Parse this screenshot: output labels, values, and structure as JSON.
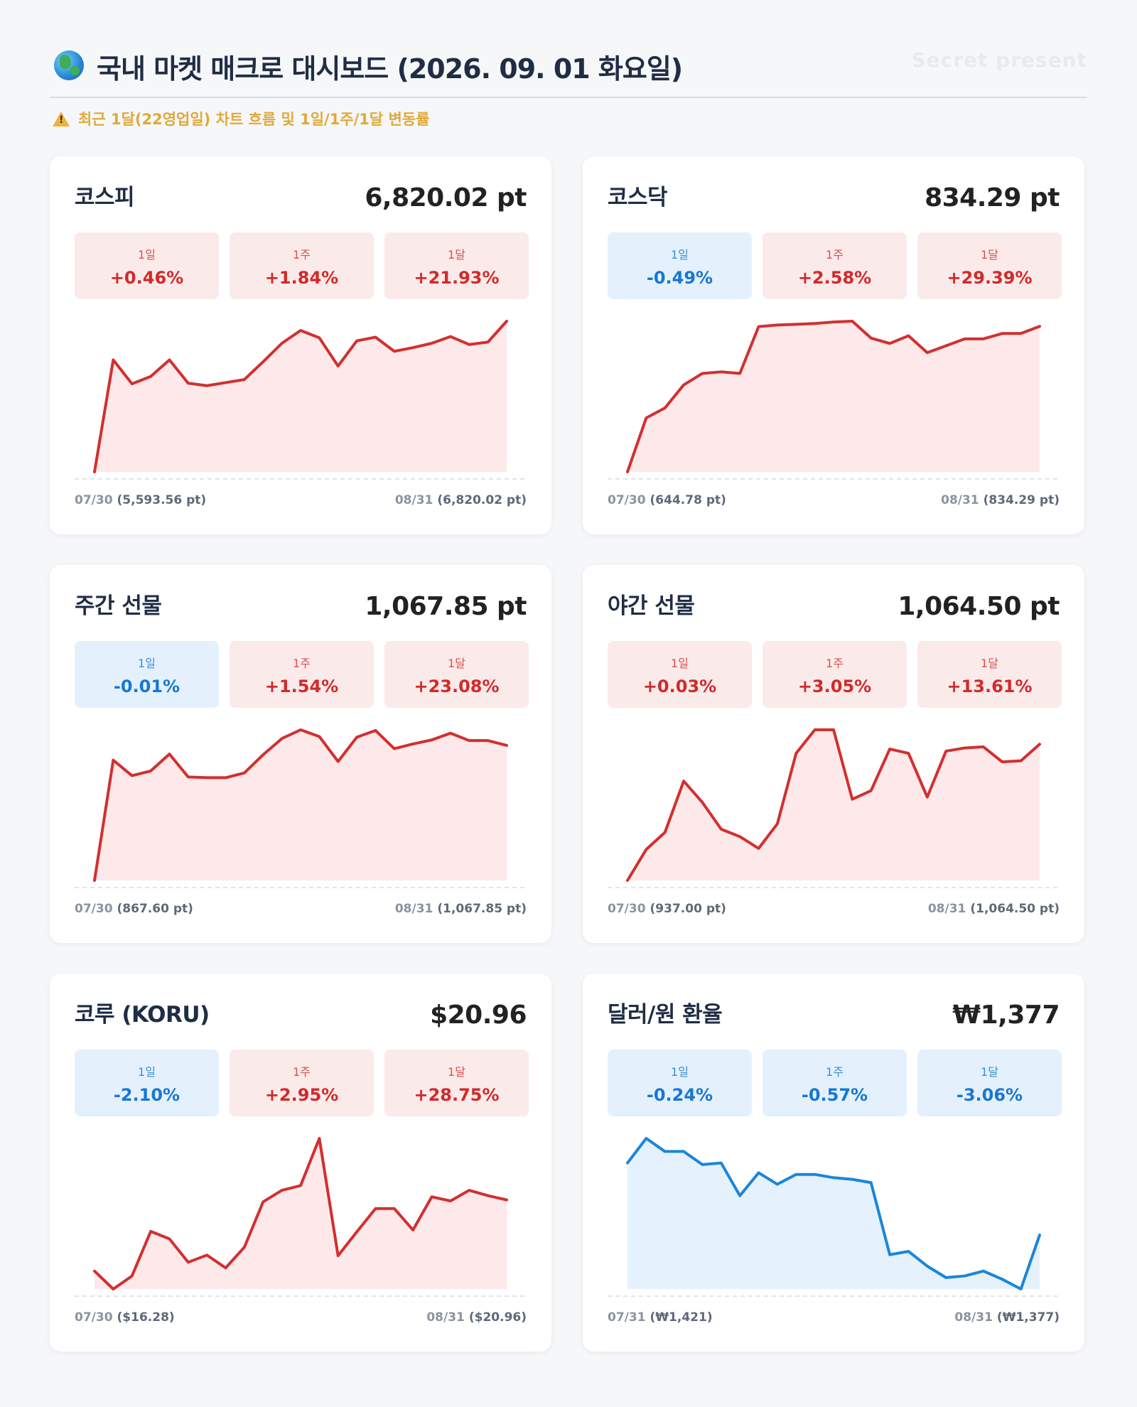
{
  "header": {
    "title": "국내 마켓 매크로 대시보드 (2026. 09. 01 화요일)",
    "watermark": "Secret present",
    "globe_icon": "globe-icon"
  },
  "subtitle": "최근 1달(22영업일) 차트 흐름 및 1일/1주/1달 변동률",
  "colors": {
    "up_line": "#d32f2f",
    "up_fill": "#fde9e9",
    "down_line": "#1a86d9",
    "down_fill": "#e5f1fc"
  },
  "cards": [
    {
      "name": "코스피",
      "value": "6,820.02 pt",
      "changes": [
        {
          "label": "1일",
          "value": "+0.46%",
          "dir": "up"
        },
        {
          "label": "1주",
          "value": "+1.84%",
          "dir": "up"
        },
        {
          "label": "1달",
          "value": "+21.93%",
          "dir": "up"
        }
      ],
      "start_date": "07/30",
      "start_value": "(5,593.56 pt)",
      "end_date": "08/31",
      "end_value": "(6,820.02 pt)"
    },
    {
      "name": "코스닥",
      "value": "834.29 pt",
      "changes": [
        {
          "label": "1일",
          "value": "-0.49%",
          "dir": "down"
        },
        {
          "label": "1주",
          "value": "+2.58%",
          "dir": "up"
        },
        {
          "label": "1달",
          "value": "+29.39%",
          "dir": "up"
        }
      ],
      "start_date": "07/30",
      "start_value": "(644.78 pt)",
      "end_date": "08/31",
      "end_value": "(834.29 pt)"
    },
    {
      "name": "주간 선물",
      "value": "1,067.85 pt",
      "changes": [
        {
          "label": "1일",
          "value": "-0.01%",
          "dir": "down"
        },
        {
          "label": "1주",
          "value": "+1.54%",
          "dir": "up"
        },
        {
          "label": "1달",
          "value": "+23.08%",
          "dir": "up"
        }
      ],
      "start_date": "07/30",
      "start_value": "(867.60 pt)",
      "end_date": "08/31",
      "end_value": "(1,067.85 pt)"
    },
    {
      "name": "야간 선물",
      "value": "1,064.50 pt",
      "changes": [
        {
          "label": "1일",
          "value": "+0.03%",
          "dir": "up"
        },
        {
          "label": "1주",
          "value": "+3.05%",
          "dir": "up"
        },
        {
          "label": "1달",
          "value": "+13.61%",
          "dir": "up"
        }
      ],
      "start_date": "07/30",
      "start_value": "(937.00 pt)",
      "end_date": "08/31",
      "end_value": "(1,064.50 pt)"
    },
    {
      "name": "코루 (KORU)",
      "value": "$20.96",
      "changes": [
        {
          "label": "1일",
          "value": "-2.10%",
          "dir": "down"
        },
        {
          "label": "1주",
          "value": "+2.95%",
          "dir": "up"
        },
        {
          "label": "1달",
          "value": "+28.75%",
          "dir": "up"
        }
      ],
      "start_date": "07/30",
      "start_value": "($16.28)",
      "end_date": "08/31",
      "end_value": "($20.96)"
    },
    {
      "name": "달러/원 환율",
      "value": "₩1,377",
      "changes": [
        {
          "label": "1일",
          "value": "-0.24%",
          "dir": "down"
        },
        {
          "label": "1주",
          "value": "-0.57%",
          "dir": "down"
        },
        {
          "label": "1달",
          "value": "-3.06%",
          "dir": "down"
        }
      ],
      "start_date": "07/31",
      "start_value": "(₩1,421)",
      "end_date": "08/31",
      "end_value": "(₩1,377)"
    }
  ],
  "chart_data": [
    {
      "type": "area",
      "trend": "up",
      "values": [
        5593.56,
        6505,
        6310,
        6370,
        6505,
        6315,
        6295,
        6320,
        6345,
        6490,
        6640,
        6745,
        6685,
        6455,
        6660,
        6690,
        6575,
        6605,
        6640,
        6695,
        6630,
        6650,
        6820.02
      ]
    },
    {
      "type": "area",
      "trend": "up",
      "values": [
        644.78,
        715,
        728,
        758,
        773,
        775,
        773,
        834,
        836,
        837,
        838,
        840,
        841,
        819,
        812,
        822,
        800,
        809,
        818,
        818,
        825,
        825,
        834.29
      ]
    },
    {
      "type": "area",
      "trend": "up",
      "values": [
        867.6,
        1046,
        1023,
        1030,
        1055,
        1021,
        1020,
        1020,
        1027,
        1054,
        1078,
        1091,
        1081,
        1044,
        1080,
        1090,
        1063,
        1070,
        1076,
        1086,
        1075,
        1075,
        1067.85
      ]
    },
    {
      "type": "area",
      "trend": "up",
      "values": [
        937.0,
        966,
        982,
        1030,
        1010,
        985,
        978,
        967,
        990,
        1056,
        1078,
        1078,
        1013,
        1021,
        1060,
        1056,
        1015,
        1058,
        1061,
        1062,
        1048,
        1049,
        1064.5
      ]
    },
    {
      "type": "area",
      "trend": "up",
      "values": [
        16.28,
        15.1,
        15.96,
        18.89,
        18.4,
        16.86,
        17.33,
        16.49,
        17.85,
        20.83,
        21.59,
        21.9,
        25.0,
        17.29,
        18.86,
        20.39,
        20.39,
        18.98,
        21.16,
        20.89,
        21.59,
        21.24,
        20.96
      ]
    },
    {
      "type": "area",
      "trend": "down",
      "values": [
        1421,
        1436,
        1428,
        1428,
        1420,
        1421,
        1401,
        1415,
        1408,
        1414,
        1414,
        1412,
        1411,
        1409,
        1365,
        1367,
        1358,
        1351,
        1352,
        1355,
        1350,
        1344,
        1377
      ]
    }
  ]
}
